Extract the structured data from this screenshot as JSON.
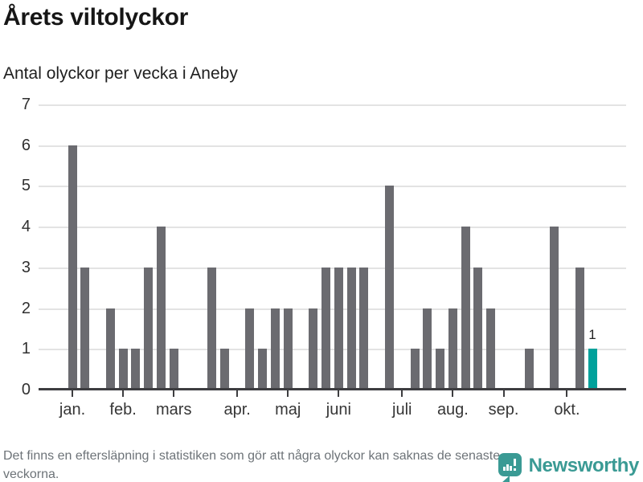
{
  "title": "Årets viltolyckor",
  "subtitle": "Antal olyckor per vecka i Aneby",
  "footer": {
    "note": "Det finns en eftersläpning i statistiken som gör att några olyckor kan saknas de senaste veckorna."
  },
  "brand": {
    "name": "Newsworthy",
    "icon": "newsworthy-bar-chart-speech-bubble-icon",
    "color": "#3a9a94"
  },
  "colors": {
    "bar": "#6b6b70",
    "highlight": "#00a19b",
    "grid": "#e3e3e3",
    "axis": "#3d3d40",
    "tick_text": "#303030",
    "muted_text": "#6d7378"
  },
  "chart_data": {
    "type": "bar",
    "title": "Årets viltolyckor",
    "subtitle": "Antal olyckor per vecka i Aneby",
    "x_unit": "vecka (week of year)",
    "first_week": 1,
    "values": [
      6,
      3,
      0,
      2,
      1,
      1,
      3,
      4,
      1,
      0,
      0,
      3,
      1,
      0,
      2,
      1,
      2,
      2,
      0,
      2,
      3,
      3,
      3,
      3,
      0,
      5,
      0,
      1,
      2,
      1,
      2,
      4,
      3,
      2,
      0,
      0,
      1,
      0,
      4,
      0,
      3,
      1
    ],
    "highlight_index": 41,
    "bar_label": {
      "index": 41,
      "text": "1"
    },
    "ylim": [
      0,
      7
    ],
    "yticks": [
      0,
      1,
      2,
      3,
      4,
      5,
      6,
      7
    ],
    "grid": true,
    "legend": "none",
    "month_ticks": [
      {
        "label": "jan.",
        "week": 1
      },
      {
        "label": "feb.",
        "week": 5
      },
      {
        "label": "mars",
        "week": 9
      },
      {
        "label": "apr.",
        "week": 14
      },
      {
        "label": "maj",
        "week": 18
      },
      {
        "label": "juni",
        "week": 22
      },
      {
        "label": "juli",
        "week": 27
      },
      {
        "label": "aug.",
        "week": 31
      },
      {
        "label": "sep.",
        "week": 35
      },
      {
        "label": "okt.",
        "week": 40
      }
    ]
  }
}
